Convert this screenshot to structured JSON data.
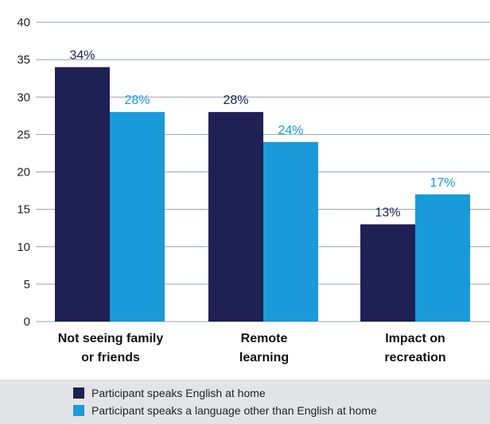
{
  "chart_data": {
    "type": "bar",
    "categories": [
      [
        "Not seeing family",
        "or friends"
      ],
      [
        "Remote",
        "learning"
      ],
      [
        "Impact on",
        "recreation"
      ]
    ],
    "series": [
      {
        "name": "Participant speaks English at home",
        "values": [
          34,
          28,
          13
        ],
        "labels": [
          "34%",
          "28%",
          "13%"
        ],
        "color": "#1f2155"
      },
      {
        "name": "Participant speaks a language other than English at home",
        "values": [
          28,
          24,
          17
        ],
        "labels": [
          "28%",
          "24%",
          "17%"
        ],
        "color": "#1a9ad9"
      }
    ],
    "ylim": [
      0,
      40
    ],
    "yticks": [
      "0",
      "5",
      "10",
      "15",
      "20",
      "25",
      "30",
      "35",
      "40"
    ],
    "grid": true,
    "legend_position": "bottom"
  },
  "colors": {
    "gridline": "#9aa4b0",
    "legend_background": "#e3e4e6"
  }
}
